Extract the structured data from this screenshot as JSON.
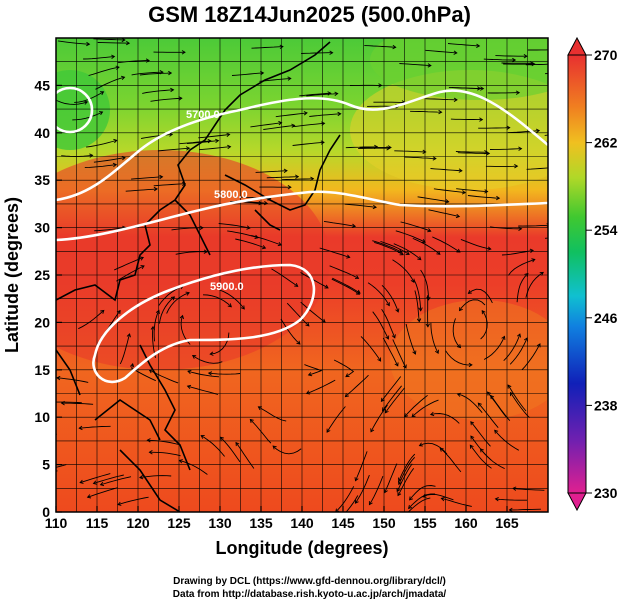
{
  "title": "GSM 18Z14Jun2025 (500.0hPa)",
  "xlabel": "Longitude (degrees)",
  "ylabel": "Latitude  (degrees)",
  "x_ticks": [
    "110",
    "115",
    "120",
    "125",
    "130",
    "135",
    "140",
    "145",
    "150",
    "155",
    "160",
    "165"
  ],
  "y_ticks": [
    "0",
    "5",
    "10",
    "15",
    "20",
    "25",
    "30",
    "35",
    "40",
    "45"
  ],
  "colorbar_ticks": [
    "270",
    "262",
    "254",
    "246",
    "238",
    "230"
  ],
  "contour_labels": [
    "5700.0",
    "5800.0",
    "5900.0"
  ],
  "credit_line1": "Drawing by DCL (https://www.gfd-dennou.org/library/dcl/)",
  "credit_line2": "Data from http://database.rish.kyoto-u.ac.jp/arch/jmadata/",
  "colors": {
    "warm_red": "#e8382a",
    "orange": "#f07a20",
    "yellow_green": "#c8dc28",
    "green": "#3cc83c",
    "contour": "#ffffff",
    "streamline": "#000000"
  },
  "chart_data": {
    "type": "heatmap",
    "xlim": [
      110,
      170
    ],
    "ylim": [
      0,
      50
    ],
    "colorbar_range": [
      230,
      270
    ],
    "height_contours": [
      5700.0,
      5800.0,
      5900.0
    ]
  }
}
